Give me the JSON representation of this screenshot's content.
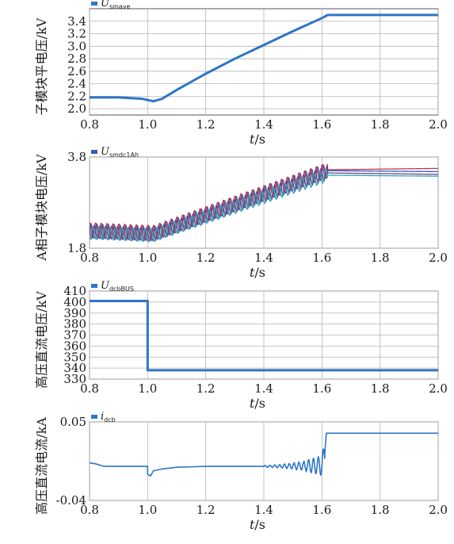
{
  "chart_data": [
    {
      "type": "line",
      "legend": {
        "symbol": "U",
        "subscript": "smave"
      },
      "ylabel": "子模块平电压/kV",
      "xlabel": "t",
      "xlabel_unit": "/s",
      "xlim": [
        0.8,
        2.0
      ],
      "ylim": [
        1.9,
        3.6
      ],
      "xticks": [
        "0.8",
        "1.0",
        "1.2",
        "1.4",
        "1.6",
        "1.8",
        "2.0"
      ],
      "yticks": [
        "2.0",
        "2.2",
        "2.4",
        "2.6",
        "2.8",
        "3.0",
        "3.2",
        "3.4"
      ],
      "ytick_values": [
        2.0,
        2.2,
        2.4,
        2.6,
        2.8,
        3.0,
        3.2,
        3.4
      ],
      "grid": true,
      "legend_position": "top-left",
      "series": [
        {
          "color": "#2e75c6",
          "x": [
            0.8,
            0.9,
            0.98,
            1.02,
            1.05,
            1.1,
            1.2,
            1.3,
            1.4,
            1.5,
            1.6,
            1.62,
            1.8,
            2.0
          ],
          "y": [
            2.18,
            2.18,
            2.16,
            2.12,
            2.16,
            2.3,
            2.56,
            2.8,
            3.02,
            3.24,
            3.45,
            3.5,
            3.5,
            3.5
          ]
        }
      ]
    },
    {
      "type": "line",
      "legend": {
        "symbol": "U",
        "subscript": "smdc1Ah"
      },
      "ylabel": "A相子模块电压/kV",
      "xlabel": "t",
      "xlabel_unit": "/s",
      "xlim": [
        0.8,
        2.0
      ],
      "ylim": [
        1.8,
        3.8
      ],
      "xticks": [
        "0.8",
        "1.0",
        "1.2",
        "1.4",
        "1.6",
        "1.8",
        "2.0"
      ],
      "yticks": [
        "1.8",
        "3.8"
      ],
      "ytick_values": [
        1.8,
        3.8
      ],
      "grid": true,
      "legend_position": "top-left",
      "series": [
        {
          "color": "#2b5fb0",
          "base": [
            [
              0.8,
              2.18
            ],
            [
              1.02,
              2.12
            ],
            [
              1.62,
              3.5
            ],
            [
              2.0,
              3.48
            ]
          ],
          "ripple": 0.16
        },
        {
          "color": "#c0344b",
          "base": [
            [
              0.8,
              2.2
            ],
            [
              1.02,
              2.14
            ],
            [
              1.62,
              3.52
            ],
            [
              2.0,
              3.55
            ]
          ],
          "ripple": 0.16
        },
        {
          "color": "#7a3c8f",
          "base": [
            [
              0.8,
              2.16
            ],
            [
              1.02,
              2.1
            ],
            [
              1.62,
              3.45
            ],
            [
              2.0,
              3.42
            ]
          ],
          "ripple": 0.15
        },
        {
          "color": "#2aa7b5",
          "base": [
            [
              0.8,
              2.14
            ],
            [
              1.02,
              2.08
            ],
            [
              1.62,
              3.4
            ],
            [
              2.0,
              3.38
            ]
          ],
          "ripple": 0.14
        }
      ]
    },
    {
      "type": "line",
      "legend": {
        "symbol": "U",
        "subscript": "dcbBUS"
      },
      "ylabel": "高压直流电压/kV",
      "xlabel": "t",
      "xlabel_unit": "/s",
      "xlim": [
        0.8,
        2.0
      ],
      "ylim": [
        330,
        410
      ],
      "xticks": [
        "0.8",
        "1.0",
        "1.2",
        "1.4",
        "1.6",
        "1.8",
        "2.0"
      ],
      "yticks": [
        "330",
        "340",
        "350",
        "360",
        "370",
        "380",
        "390",
        "400",
        "410"
      ],
      "ytick_values": [
        330,
        340,
        350,
        360,
        370,
        380,
        390,
        400,
        410
      ],
      "grid": true,
      "legend_position": "top-left",
      "series": [
        {
          "color": "#2e75c6",
          "x": [
            0.8,
            1.0,
            1.0,
            2.0
          ],
          "y": [
            401,
            401,
            338,
            338
          ]
        }
      ]
    },
    {
      "type": "line",
      "legend": {
        "symbol": "i",
        "subscript": "dcb"
      },
      "ylabel": "高压直流电流/kA",
      "xlabel": "t",
      "xlabel_unit": "/s",
      "xlim": [
        0.8,
        2.0
      ],
      "ylim": [
        -0.04,
        0.05
      ],
      "xticks": [
        "0.8",
        "1.0",
        "1.2",
        "1.4",
        "1.6",
        "1.8",
        "2.0"
      ],
      "yticks": [
        "-0.04",
        "0.05"
      ],
      "ytick_values": [
        -0.04,
        0.05
      ],
      "grid": true,
      "legend_position": "top-left",
      "series": [
        {
          "color": "#2e75c6",
          "x": [
            0.8,
            0.82,
            0.85,
            0.9,
            0.99,
            1.0,
            1.0,
            1.01,
            1.02,
            1.05,
            1.1,
            1.2,
            1.4,
            1.55,
            1.6,
            1.61,
            1.615,
            1.62,
            1.65,
            1.8,
            2.0
          ],
          "y": [
            0.003,
            0.002,
            -0.001,
            -0.001,
            -0.001,
            -0.001,
            -0.01,
            -0.012,
            -0.006,
            -0.004,
            -0.002,
            -0.001,
            -0.001,
            -0.0005,
            0.0,
            0.015,
            0.037,
            0.037,
            0.037,
            0.037,
            0.037
          ]
        }
      ]
    }
  ]
}
